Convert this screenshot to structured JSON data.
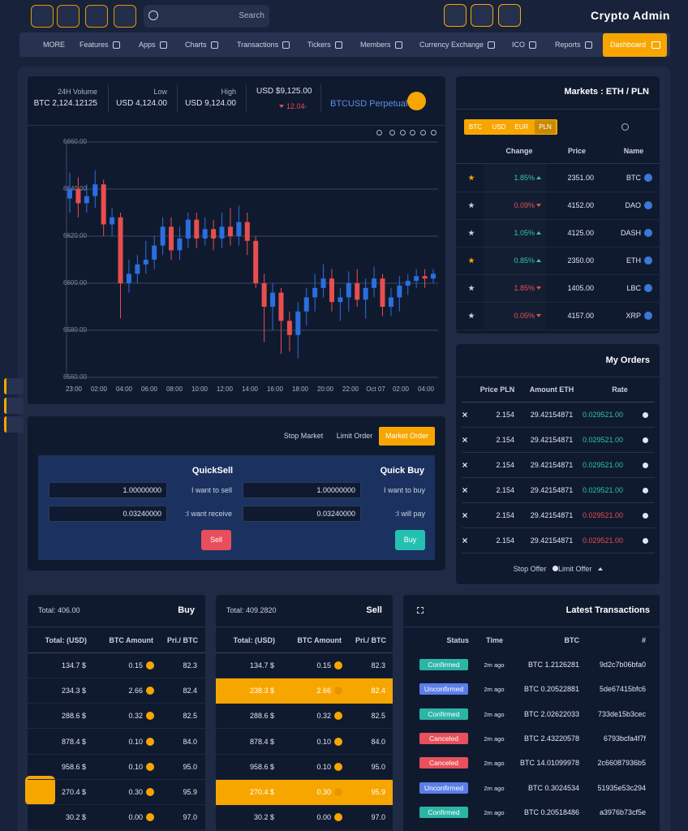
{
  "header": {
    "title": "Crypto Admin",
    "search": "Search"
  },
  "nav": {
    "items": [
      "MORE",
      "Features",
      "Apps",
      "Charts",
      "Transactions",
      "Tickers",
      "Members",
      "Currency Exchange",
      "ICO",
      "Reports",
      "Dashboard"
    ]
  },
  "ticker": {
    "volume_label": "24H Volume",
    "volume": "BTC 2,124.12125",
    "low_label": "Low",
    "low": "USD 4,124.00",
    "high_label": "High",
    "high": "USD 9,124.00",
    "price": "USD $9,125.00",
    "change": "12.04-",
    "pair_base": "BTC",
    "pair_quote": "USD Perpetual"
  },
  "chart": {
    "type": "candlestick",
    "up_color": "#2a6fe0",
    "down_color": "#e84e4e",
    "ylim": [
      6560,
      6660
    ],
    "yticks": [
      {
        "value": 6560,
        "label": "6560.00"
      },
      {
        "value": 6580,
        "label": "6580.00"
      },
      {
        "value": 6600,
        "label": "6600.00"
      },
      {
        "value": 6620,
        "label": "6620.00"
      },
      {
        "value": 6640,
        "label": "6640.00"
      },
      {
        "value": 6660,
        "label": "6660.00"
      }
    ],
    "categories": [
      "23:00",
      "02:00",
      "04:00",
      "06:00",
      "08:00",
      "10:00",
      "12:00",
      "14:00",
      "16:00",
      "18:00",
      "20:00",
      "22:00",
      "Oct 07",
      "02:00",
      "04:00"
    ],
    "open": [
      6636,
      6640,
      6634,
      6637,
      6642,
      6625,
      6628,
      6600,
      6604,
      6608,
      6610,
      6616,
      6624,
      6614,
      6619,
      6627,
      6619,
      6623,
      6619,
      6624,
      6620,
      6626,
      6618,
      6600,
      6590,
      6596,
      6584,
      6578,
      6588,
      6594,
      6598,
      6602,
      6592,
      6594,
      6600,
      6593,
      6598,
      6602,
      6590,
      6594,
      6599,
      6601,
      6603,
      6602
    ],
    "high": [
      6647,
      6645,
      6642,
      6648,
      6644,
      6632,
      6630,
      6610,
      6612,
      6618,
      6620,
      6628,
      6628,
      6624,
      6630,
      6630,
      6628,
      6627,
      6630,
      6632,
      6633,
      6630,
      6620,
      6604,
      6600,
      6598,
      6588,
      6592,
      6598,
      6604,
      6608,
      6606,
      6598,
      6605,
      6606,
      6602,
      6607,
      6604,
      6598,
      6603,
      6604,
      6606,
      6606,
      6606
    ],
    "low": [
      6630,
      6628,
      6630,
      6632,
      6620,
      6620,
      6585,
      6596,
      6600,
      6604,
      6606,
      6612,
      6610,
      6610,
      6615,
      6615,
      6616,
      6614,
      6615,
      6616,
      6616,
      6612,
      6598,
      6575,
      6580,
      6570,
      6571,
      6568,
      6582,
      6588,
      6594,
      6588,
      6584,
      6588,
      6590,
      6585,
      6594,
      6586,
      6586,
      6588,
      6595,
      6598,
      6598,
      6600
    ],
    "close": [
      6640,
      6634,
      6637,
      6642,
      6625,
      6628,
      6600,
      6604,
      6608,
      6610,
      6616,
      6624,
      6614,
      6619,
      6627,
      6619,
      6623,
      6619,
      6624,
      6620,
      6626,
      6618,
      6600,
      6590,
      6596,
      6584,
      6578,
      6588,
      6594,
      6598,
      6602,
      6592,
      6594,
      6600,
      6593,
      6598,
      6602,
      6590,
      6594,
      6599,
      6601,
      6603,
      6602,
      6604
    ]
  },
  "order_form": {
    "tabs": [
      "Stop Market",
      "Limit Order",
      "Market Order"
    ],
    "sell": {
      "title": "QuickSell",
      "rows": [
        {
          "value": "1.00000000",
          "label": "I want to sell"
        },
        {
          "value": "0.03240000",
          "label": ":I want receive"
        }
      ],
      "button": "Sell"
    },
    "buy": {
      "title": "Quick Buy",
      "rows": [
        {
          "value": "1.00000000",
          "label": "I want to buy"
        },
        {
          "value": "0.03240000",
          "label": ":I will pay"
        }
      ],
      "button": "Buy"
    }
  },
  "markets": {
    "title": "Markets : ETH / PLN",
    "tabs": [
      "BTC",
      "USD",
      "EUR",
      "PLN"
    ],
    "columns": [
      "Change",
      "Price",
      "Name"
    ],
    "rows": [
      {
        "change": "1.85%",
        "color": "#2ec4a6",
        "price": "2351.00",
        "name": "BTC",
        "starred": true
      },
      {
        "change": "0.09%",
        "color": "#e84e4e",
        "price": "4152.00",
        "name": "DAO",
        "starred": false
      },
      {
        "change": "1.05%",
        "color": "#2ec4a6",
        "price": "4125.00",
        "name": "DASH",
        "starred": false
      },
      {
        "change": "0.85%",
        "color": "#2ec4a6",
        "price": "2350.00",
        "name": "ETH",
        "starred": true
      },
      {
        "change": "1.85%",
        "color": "#e84e4e",
        "price": "1405.00",
        "name": "LBC",
        "starred": false
      },
      {
        "change": "0.05%",
        "color": "#e84e4e",
        "price": "4157.00",
        "name": "XRP",
        "starred": false
      }
    ]
  },
  "my_orders": {
    "title": "My Orders",
    "columns": [
      "Price PLN",
      "Amount ETH",
      "Rate"
    ],
    "rows": [
      {
        "price": "2.154",
        "amount": "29.42154871",
        "rate": "0.029521.00",
        "color": "#2ec4a6"
      },
      {
        "price": "2.154",
        "amount": "29.42154871",
        "rate": "0.029521.00",
        "color": "#2ec4a6"
      },
      {
        "price": "2.154",
        "amount": "29.42154871",
        "rate": "0.029521.00",
        "color": "#2ec4a6"
      },
      {
        "price": "2.154",
        "amount": "29.42154871",
        "rate": "0.029521.00",
        "color": "#2ec4a6"
      },
      {
        "price": "2.154",
        "amount": "29.42154871",
        "rate": "0.029521.00",
        "color": "#e84e4e"
      },
      {
        "price": "2.154",
        "amount": "29.42154871",
        "rate": "0.029521.00",
        "color": "#e84e4e"
      }
    ],
    "footer": [
      "Stop Offer",
      "Limit Offer"
    ]
  },
  "buy_table": {
    "total": "Total: 406.00",
    "title": "Buy",
    "columns": [
      "Total: (USD)",
      "BTC Amount",
      "Pri./ BTC"
    ],
    "rows": [
      {
        "total": "134.7 $",
        "amount": "0.15",
        "price": "82.3"
      },
      {
        "total": "234.3 $",
        "amount": "2.66",
        "price": "82.4"
      },
      {
        "total": "288.6 $",
        "amount": "0.32",
        "price": "82.5"
      },
      {
        "total": "878.4 $",
        "amount": "0.10",
        "price": "84.0"
      },
      {
        "total": "958.6 $",
        "amount": "0.10",
        "price": "95.0"
      },
      {
        "total": "270.4 $",
        "amount": "0.30",
        "price": "95.9"
      },
      {
        "total": "30.2 $",
        "amount": "0.00",
        "price": "97.0"
      }
    ]
  },
  "sell_table": {
    "total": "Total: 409.2820",
    "title": "Sell",
    "columns": [
      "Total: (USD)",
      "BTC Amount",
      "Pri./ BTC"
    ],
    "rows": [
      {
        "total": "134.7 $",
        "amount": "0.15",
        "price": "82.3"
      },
      {
        "total": "238.3 $",
        "amount": "2.66",
        "price": "82.4",
        "highlighted": true
      },
      {
        "total": "288.6 $",
        "amount": "0.32",
        "price": "82.5"
      },
      {
        "total": "878.4 $",
        "amount": "0.10",
        "price": "84.0"
      },
      {
        "total": "958.6 $",
        "amount": "0.10",
        "price": "95.0"
      },
      {
        "total": "270.4 $",
        "amount": "0.30",
        "price": "95.9",
        "highlighted": true
      },
      {
        "total": "30.2 $",
        "amount": "0.00",
        "price": "97.0"
      }
    ]
  },
  "transactions": {
    "title": "Latest Transactions",
    "columns": [
      "Status",
      "Time",
      "BTC",
      "#"
    ],
    "rows": [
      {
        "status": "Confirmed",
        "color": "#2bb5a5",
        "time": "2m ago",
        "btc": "BTC 1.2126281",
        "hash": "9d2c7b06bfa0"
      },
      {
        "status": "Unconfirmed",
        "color": "#5b7fe8",
        "time": "2m ago",
        "btc": "BTC 0.20522881",
        "hash": "5de67415bfc6"
      },
      {
        "status": "Confirmed",
        "color": "#2bb5a5",
        "time": "2m ago",
        "btc": "BTC 2.02622033",
        "hash": "733de15b3cec"
      },
      {
        "status": "Canceled",
        "color": "#e8505b",
        "time": "2m ago",
        "btc": "BTC 2.43220578",
        "hash": "6793bcfa4f7f"
      },
      {
        "status": "Canceled",
        "color": "#e8505b",
        "time": "2m ago",
        "btc": "BTC 14.01099978",
        "hash": "2c66087936b5"
      },
      {
        "status": "Unconfirmed",
        "color": "#5b7fe8",
        "time": "2m ago",
        "btc": "BTC 0.3024534",
        "hash": "51935e53c294"
      },
      {
        "status": "Confirmed",
        "color": "#2bb5a5",
        "time": "2m ago",
        "btc": "BTC 0.20518486",
        "hash": "a3976b73cf5e"
      }
    ]
  }
}
